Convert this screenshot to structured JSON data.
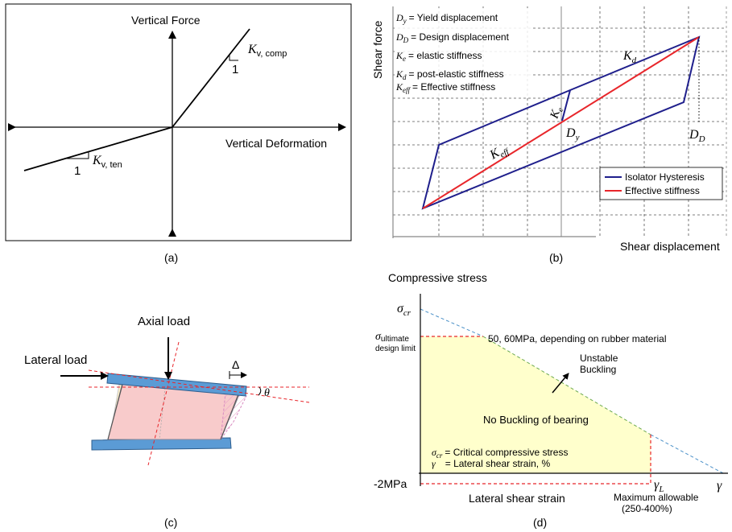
{
  "panel_a": {
    "caption": "(a)",
    "y_axis_label": "Vertical Force",
    "x_axis_label": "Vertical Deformation",
    "k_comp_main": "K",
    "k_comp_sub": "v, comp",
    "k_ten_main": "K",
    "k_ten_sub": "v, ten",
    "slope_one_comp": "1",
    "slope_one_ten": "1"
  },
  "panel_b": {
    "caption": "(b)",
    "y_axis_label": "Shear force",
    "x_axis_label": "Shear displacement",
    "defs": [
      {
        "sym": "D",
        "sub": "y",
        "text": "= Yield displacement"
      },
      {
        "sym": "D",
        "sub": "D",
        "text": "= Design displacement"
      },
      {
        "sym": "K",
        "sub": "e",
        "text": "= elastic stiffness"
      },
      {
        "sym": "K",
        "sub": "d",
        "text": "= post-elastic stiffness"
      },
      {
        "sym": "K",
        "sub": "eff",
        "text": "= Effective stiffness"
      }
    ],
    "label_kd": {
      "main": "K",
      "sub": "d"
    },
    "label_ke": {
      "main": "K",
      "sub": "e"
    },
    "label_keff": {
      "main": "K",
      "sub": "eff"
    },
    "label_dy": {
      "main": "D",
      "sub": "y"
    },
    "label_dd": {
      "main": "D",
      "sub": "D"
    },
    "legend": [
      {
        "name": "Isolator Hysteresis",
        "color": "#1f1f8c"
      },
      {
        "name": "Effective stiffness",
        "color": "#e8262b"
      }
    ]
  },
  "panel_c": {
    "caption": "(c)",
    "axial_load": "Axial load",
    "lateral_load": "Lateral load",
    "delta": "Δ",
    "theta": "θ"
  },
  "panel_d": {
    "caption": "(d)",
    "y_axis_label": "Compressive stress",
    "x_axis_label": "Lateral shear strain",
    "sigma_cr": {
      "main": "σ",
      "sub": "cr"
    },
    "sigma_ult_main": "σ",
    "sigma_ult_sub": "ultimate",
    "sigma_ult_line2": "design limit",
    "minus_2mpa": "-2MPa",
    "rubber_note": "50, 60MPa, depending on rubber material",
    "unstable_1": "Unstable",
    "unstable_2": "Buckling",
    "no_buckling": "No Buckling of bearing",
    "def_sigma": {
      "main": "σ",
      "sub": "cr",
      "text": "= Critical compressive stress"
    },
    "def_gamma": {
      "main": "γ",
      "text": "= Lateral shear strain, %"
    },
    "gamma_l": {
      "main": "γ",
      "sub": "L"
    },
    "gamma": "γ",
    "max_allow_1": "Maximum allowable",
    "max_allow_2": "(250-400%)",
    "colors": {
      "region": "#ffffcc",
      "boundary": "#e8262b",
      "dash_blue": "#4a90c8",
      "dash_green": "#6aa84f"
    }
  }
}
